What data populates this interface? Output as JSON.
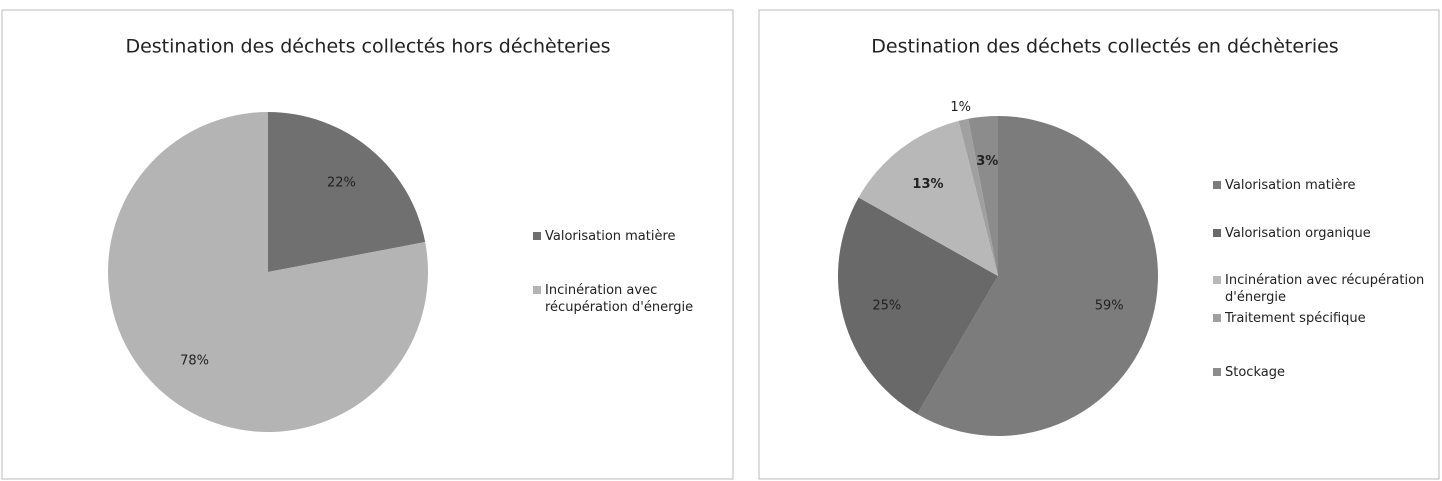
{
  "chart_data": [
    {
      "type": "pie",
      "title": "Destination des déchets collectés hors déchèteries",
      "categories": [
        "Valorisation matière",
        "Incinération avec récupération d'énergie"
      ],
      "values": [
        22,
        78
      ],
      "value_labels": [
        "22%",
        "78%"
      ],
      "colors": [
        "#707070",
        "#b4b4b4"
      ],
      "legend": "right"
    },
    {
      "type": "pie",
      "title": "Destination des déchets collectés en déchèteries",
      "categories": [
        "Valorisation matière",
        "Valorisation organique",
        "Incinération avec récupération d'énergie",
        "Traitement spécifique",
        "Stockage"
      ],
      "values": [
        59,
        25,
        13,
        1,
        3
      ],
      "value_labels": [
        "59%",
        "25%",
        "13%",
        "1%",
        "3%"
      ],
      "colors": [
        "#7c7c7c",
        "#696969",
        "#b8b8b8",
        "#a0a0a0",
        "#8c8c8c"
      ],
      "legend": "right"
    }
  ]
}
